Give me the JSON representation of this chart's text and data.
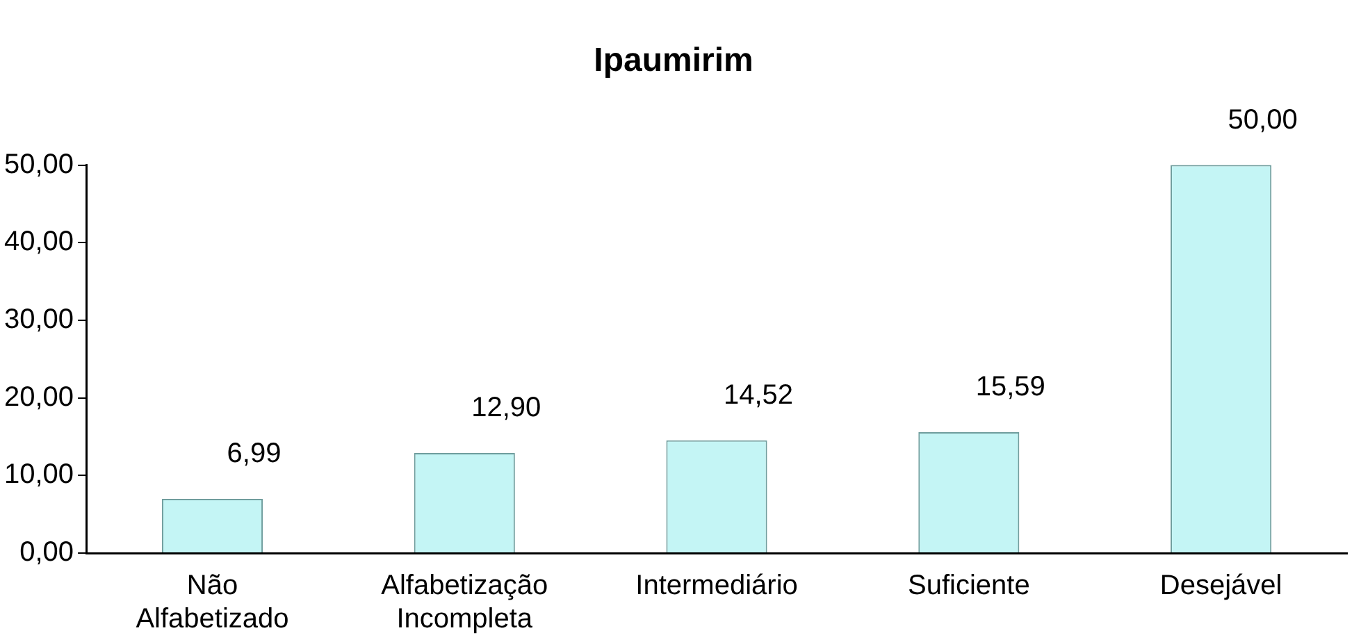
{
  "chart_data": {
    "type": "bar",
    "title": "Ipaumirim",
    "categories": [
      "Não Alfabetizado",
      "Alfabetização Incompleta",
      "Intermediário",
      "Suficiente",
      "Desejável"
    ],
    "values": [
      6.99,
      12.9,
      14.52,
      15.59,
      50.0
    ],
    "value_labels": [
      "6,99",
      "12,90",
      "14,52",
      "15,59",
      "50,00"
    ],
    "color": "#c4f5f5",
    "ylim": [
      0,
      50
    ],
    "yticks": [
      {
        "value": 0,
        "label": "0,00"
      },
      {
        "value": 10,
        "label": "10,00"
      },
      {
        "value": 20,
        "label": "20,00"
      },
      {
        "value": 30,
        "label": "30,00"
      },
      {
        "value": 40,
        "label": "40,00"
      },
      {
        "value": 50,
        "label": "50,00"
      }
    ],
    "grid": false,
    "legend": false
  }
}
